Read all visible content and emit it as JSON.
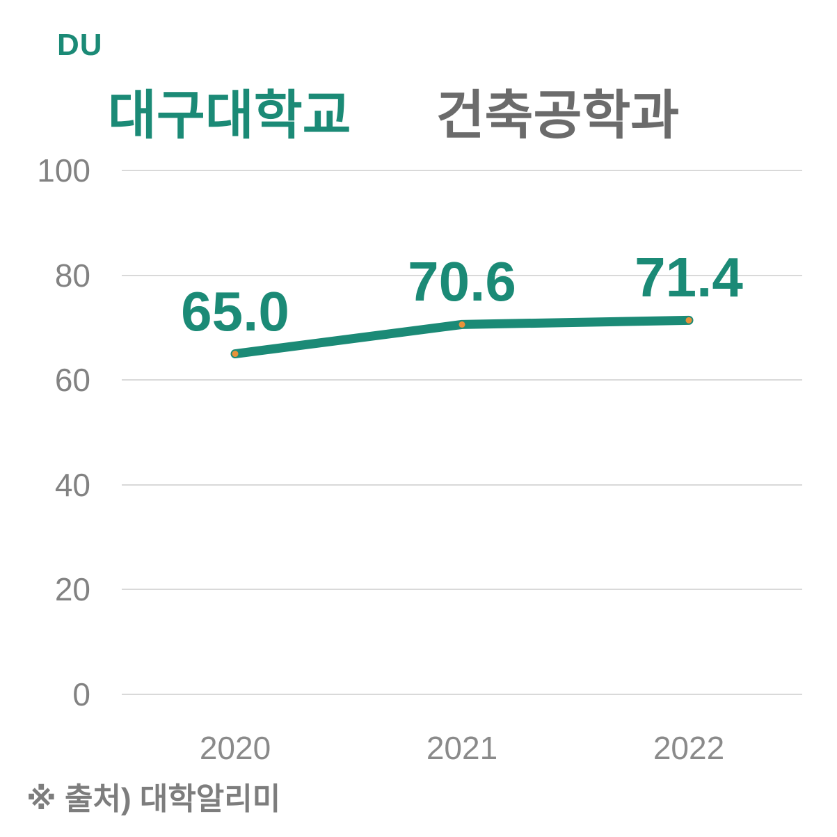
{
  "brand": {
    "logo_text": "DU"
  },
  "header": {
    "title_university": "대구대학교",
    "title_department": "건축공학과"
  },
  "footer": {
    "source_note": "※ 출처) 대학알리미"
  },
  "colors": {
    "accent_teal": "#1b8a76",
    "title_gray": "#6b6b6b",
    "axis_gray": "#828282",
    "gridline_gray": "#d9d9d9",
    "marker_orange": "#e8923a"
  },
  "chart_data": {
    "type": "line",
    "title": "대구대학교 건축공학과",
    "x": [
      "2020",
      "2021",
      "2022"
    ],
    "series": [
      {
        "name": "대구대학교 건축공학과",
        "values": [
          65.0,
          70.6,
          71.4
        ]
      }
    ],
    "data_labels": [
      "65.0",
      "70.6",
      "71.4"
    ],
    "xlabel": "",
    "ylabel": "",
    "ylim": [
      0,
      100
    ],
    "yticks": [
      0,
      20,
      40,
      60,
      80,
      100
    ],
    "grid": "horizontal",
    "legend": "none",
    "line_width": 13,
    "marker": "dot"
  }
}
